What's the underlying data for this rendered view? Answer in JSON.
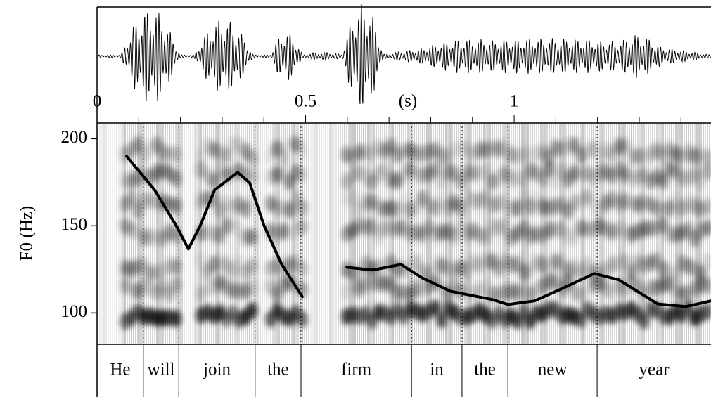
{
  "chart_data": {
    "type": "line",
    "xlabel": "(s)",
    "ylabel": "F0 (Hz)",
    "xlim": [
      0,
      1.472
    ],
    "xticks": [
      0,
      0.5,
      1
    ],
    "xminorticks": [
      0.1,
      0.2,
      0.3,
      0.4,
      0.6,
      0.7,
      0.8,
      0.9,
      1.1,
      1.2,
      1.3,
      1.4
    ],
    "ylim": [
      82,
      209
    ],
    "yticks": [
      100,
      150,
      200
    ],
    "color": "#000000",
    "x": [
      0.071,
      0.138,
      0.189,
      0.219,
      0.248,
      0.282,
      0.337,
      0.366,
      0.4,
      0.442,
      0.492,
      0.55,
      0.599,
      0.661,
      0.729,
      0.779,
      0.847,
      0.948,
      0.985,
      1.049,
      1.116,
      1.192,
      1.251,
      1.344,
      1.411,
      1.472
    ],
    "values": [
      189.9,
      170.6,
      150.4,
      136.7,
      150.4,
      170.6,
      180.6,
      174.6,
      150.4,
      128.2,
      109.3,
      null,
      126.2,
      124.6,
      127.8,
      120.2,
      112.5,
      107.7,
      104.8,
      106.9,
      114.1,
      122.6,
      119,
      105.2,
      103.6,
      106.9
    ],
    "words": [
      {
        "label": "He",
        "start": 0,
        "end": 0.111
      },
      {
        "label": "will",
        "start": 0.111,
        "end": 0.196
      },
      {
        "label": "join",
        "start": 0.196,
        "end": 0.379
      },
      {
        "label": "the",
        "start": 0.379,
        "end": 0.489
      },
      {
        "label": "firm",
        "start": 0.489,
        "end": 0.754
      },
      {
        "label": "in",
        "start": 0.754,
        "end": 0.875
      },
      {
        "label": "the",
        "start": 0.875,
        "end": 0.985
      },
      {
        "label": "new",
        "start": 0.985,
        "end": 1.199
      },
      {
        "label": "year",
        "start": 1.199,
        "end": 1.472
      }
    ]
  }
}
